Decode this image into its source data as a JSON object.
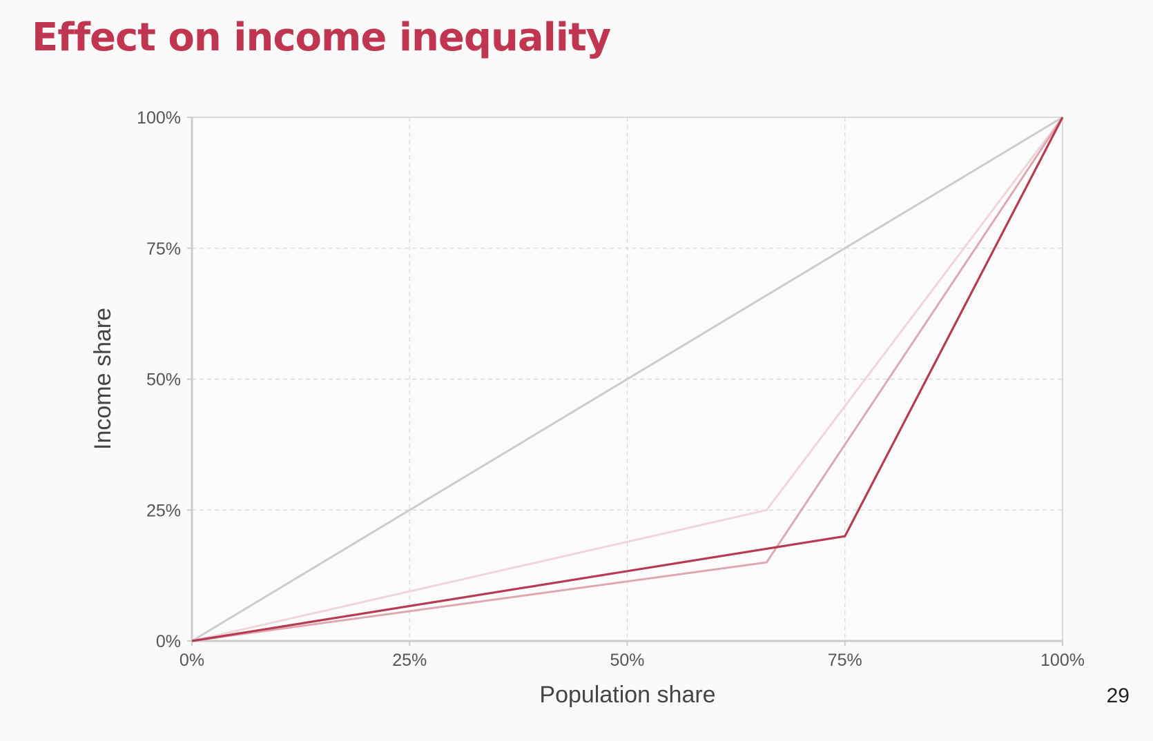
{
  "slide": {
    "title": "Effect on income inequality",
    "page_number": "29"
  },
  "chart_data": {
    "type": "line",
    "title": "",
    "xlabel": "Population share",
    "ylabel": "Income share",
    "xlim": [
      0,
      100
    ],
    "ylim": [
      0,
      100
    ],
    "x_ticks": [
      0,
      25,
      50,
      75,
      100
    ],
    "y_ticks": [
      0,
      25,
      50,
      75,
      100
    ],
    "x_tick_labels": [
      "0%",
      "25%",
      "50%",
      "75%",
      "100%"
    ],
    "y_tick_labels": [
      "0%",
      "25%",
      "50%",
      "75%",
      "100%"
    ],
    "grid": true,
    "legend": "none",
    "series": [
      {
        "color": "#cccccc",
        "points": [
          [
            0,
            0
          ],
          [
            100,
            100
          ]
        ]
      },
      {
        "color": "#f0d5db",
        "points": [
          [
            0,
            0
          ],
          [
            66,
            25
          ],
          [
            100,
            100
          ]
        ]
      },
      {
        "color": "#dfa7b1",
        "points": [
          [
            0,
            0
          ],
          [
            66,
            15
          ],
          [
            100,
            100
          ]
        ]
      },
      {
        "color": "#b83a52",
        "points": [
          [
            0,
            0
          ],
          [
            75,
            20
          ],
          [
            100,
            100
          ]
        ]
      }
    ]
  }
}
